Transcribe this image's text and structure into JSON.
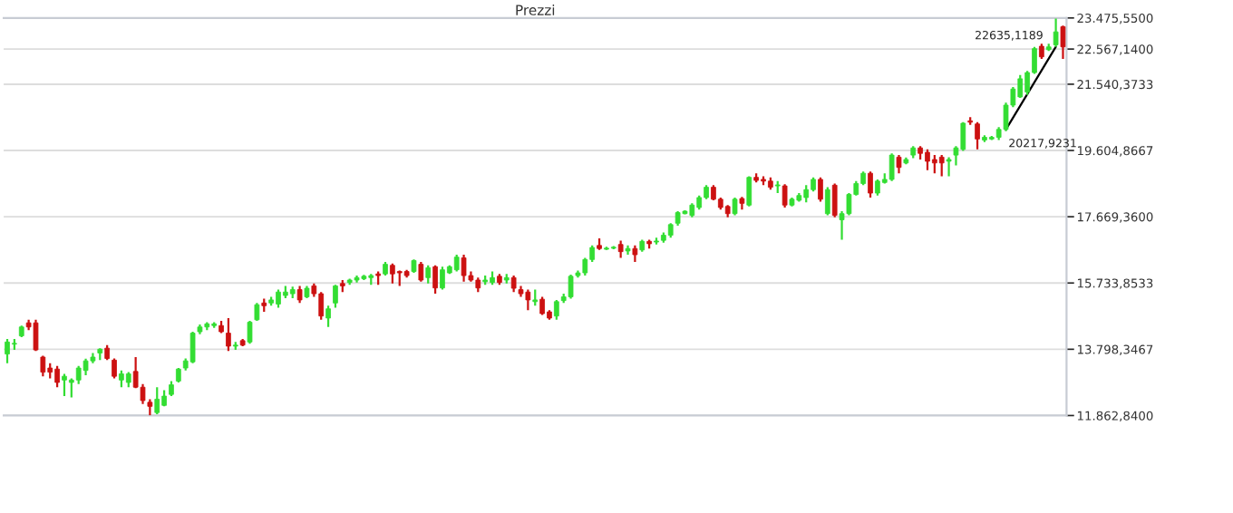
{
  "chart_data": {
    "type": "candlestick",
    "title": "Prezzi",
    "categories": [
      null,
      null,
      null,
      null,
      null,
      null,
      null,
      null,
      null,
      null,
      null,
      null,
      null,
      null,
      null,
      null,
      null,
      null,
      null,
      null,
      null,
      null,
      null,
      null,
      null,
      null,
      null,
      null,
      null,
      null,
      null,
      null,
      null,
      null,
      null,
      null,
      null,
      null,
      null,
      null,
      null,
      null,
      null,
      null,
      null,
      null,
      null,
      null,
      null,
      null,
      null,
      null,
      null,
      null,
      null,
      null,
      null,
      null,
      null,
      null,
      null,
      null,
      null,
      null,
      null,
      null,
      null,
      null,
      null,
      null,
      null,
      null,
      null,
      null,
      null,
      null,
      null,
      null,
      null,
      null,
      null,
      null,
      null,
      null,
      null,
      null,
      null,
      null,
      null,
      null,
      null,
      null,
      null,
      null,
      null,
      null,
      null,
      null,
      null,
      null,
      null,
      null,
      null,
      null,
      null,
      null,
      null,
      null,
      null,
      null,
      null,
      null,
      null,
      null,
      null,
      null,
      null,
      null,
      null,
      null,
      null,
      null,
      null,
      null,
      null,
      null,
      null,
      null,
      null,
      null,
      null,
      null,
      null,
      null,
      null,
      null,
      null,
      null,
      null,
      null,
      null,
      null,
      null,
      null,
      null,
      null,
      null,
      null,
      null
    ],
    "ohlc": [
      [
        13660,
        14100,
        13390,
        14010
      ],
      [
        13950,
        14100,
        13780,
        13970
      ],
      [
        14190,
        14490,
        14150,
        14450
      ],
      [
        14570,
        14660,
        14360,
        14450
      ],
      [
        14570,
        14660,
        13750,
        13780
      ],
      [
        13570,
        13610,
        13010,
        13130
      ],
      [
        13250,
        13390,
        12950,
        13130
      ],
      [
        13220,
        13310,
        12690,
        12830
      ],
      [
        12900,
        13080,
        12430,
        13010
      ],
      [
        12830,
        12950,
        12390,
        12900
      ],
      [
        12900,
        13310,
        12780,
        13250
      ],
      [
        13180,
        13520,
        13040,
        13460
      ],
      [
        13460,
        13690,
        13390,
        13570
      ],
      [
        13690,
        13830,
        13480,
        13800
      ],
      [
        13830,
        13920,
        13480,
        13530
      ],
      [
        13480,
        13530,
        12950,
        13010
      ],
      [
        12900,
        13180,
        12690,
        13080
      ],
      [
        12830,
        13130,
        12690,
        13080
      ],
      [
        13150,
        13570,
        12660,
        12690
      ],
      [
        12690,
        12780,
        12200,
        12300
      ],
      [
        12250,
        12340,
        11870,
        12130
      ],
      [
        11950,
        12690,
        11900,
        12340
      ],
      [
        12160,
        12600,
        12130,
        12430
      ],
      [
        12480,
        12870,
        12430,
        12760
      ],
      [
        12870,
        13250,
        12830,
        13220
      ],
      [
        13250,
        13530,
        13180,
        13460
      ],
      [
        13430,
        14310,
        13390,
        14270
      ],
      [
        14310,
        14520,
        14240,
        14450
      ],
      [
        14450,
        14590,
        14360,
        14540
      ],
      [
        14490,
        14590,
        14420,
        14540
      ],
      [
        14490,
        14630,
        14270,
        14310
      ],
      [
        14270,
        14710,
        13750,
        13890
      ],
      [
        13890,
        14010,
        13780,
        13920
      ],
      [
        14050,
        14100,
        13890,
        13920
      ],
      [
        14010,
        14630,
        13960,
        14590
      ],
      [
        14660,
        15150,
        14630,
        15100
      ],
      [
        15150,
        15280,
        14890,
        15070
      ],
      [
        15150,
        15330,
        15070,
        15240
      ],
      [
        15120,
        15540,
        15010,
        15470
      ],
      [
        15370,
        15650,
        15290,
        15470
      ],
      [
        15420,
        15630,
        15290,
        15540
      ],
      [
        15540,
        15650,
        15150,
        15240
      ],
      [
        15330,
        15650,
        15290,
        15580
      ],
      [
        15650,
        15720,
        15330,
        15420
      ],
      [
        15420,
        15470,
        14660,
        14770
      ],
      [
        14710,
        15070,
        14450,
        14980
      ],
      [
        15150,
        15680,
        15010,
        15650
      ],
      [
        15720,
        15820,
        15470,
        15650
      ],
      [
        15750,
        15860,
        15680,
        15820
      ],
      [
        15820,
        15950,
        15750,
        15890
      ],
      [
        15860,
        15970,
        15820,
        15930
      ],
      [
        15890,
        16000,
        15680,
        15950
      ],
      [
        16000,
        16070,
        15680,
        15950
      ],
      [
        16000,
        16350,
        15950,
        16280
      ],
      [
        16250,
        16300,
        15720,
        16000
      ],
      [
        16070,
        16100,
        15650,
        16030
      ],
      [
        16070,
        16120,
        15890,
        15950
      ],
      [
        16070,
        16420,
        16030,
        16390
      ],
      [
        16280,
        16350,
        15770,
        15820
      ],
      [
        15890,
        16250,
        15720,
        16180
      ],
      [
        16210,
        16250,
        15420,
        15590
      ],
      [
        15590,
        16210,
        15540,
        16120
      ],
      [
        16030,
        16250,
        16000,
        16210
      ],
      [
        16120,
        16560,
        16070,
        16490
      ],
      [
        16470,
        16560,
        15770,
        15950
      ],
      [
        15950,
        16070,
        15770,
        15820
      ],
      [
        15820,
        15890,
        15470,
        15590
      ],
      [
        15770,
        15950,
        15680,
        15820
      ],
      [
        15750,
        16070,
        15680,
        15890
      ],
      [
        15930,
        16000,
        15680,
        15750
      ],
      [
        15820,
        16000,
        15720,
        15890
      ],
      [
        15890,
        15950,
        15470,
        15580
      ],
      [
        15540,
        15650,
        15330,
        15420
      ],
      [
        15470,
        15540,
        14940,
        15240
      ],
      [
        15190,
        15540,
        15070,
        15240
      ],
      [
        15260,
        15330,
        14800,
        14840
      ],
      [
        14890,
        14940,
        14660,
        14710
      ],
      [
        14770,
        15240,
        14660,
        15190
      ],
      [
        15220,
        15420,
        15150,
        15330
      ],
      [
        15330,
        15980,
        15280,
        15930
      ],
      [
        15950,
        16100,
        15890,
        16030
      ],
      [
        16030,
        16470,
        15950,
        16420
      ],
      [
        16420,
        16830,
        16350,
        16770
      ],
      [
        16830,
        17040,
        16700,
        16740
      ],
      [
        16720,
        16790,
        16700,
        16750
      ],
      [
        16750,
        16810,
        16720,
        16780
      ],
      [
        16860,
        16970,
        16470,
        16650
      ],
      [
        16670,
        16830,
        16560,
        16740
      ],
      [
        16740,
        16830,
        16350,
        16560
      ],
      [
        16700,
        17000,
        16650,
        16950
      ],
      [
        16950,
        17000,
        16740,
        16880
      ],
      [
        16930,
        17060,
        16860,
        16960
      ],
      [
        16980,
        17210,
        16910,
        17130
      ],
      [
        17130,
        17480,
        17060,
        17440
      ],
      [
        17480,
        17830,
        17410,
        17790
      ],
      [
        17760,
        17860,
        17740,
        17830
      ],
      [
        17710,
        18060,
        17650,
        18010
      ],
      [
        17940,
        18290,
        17880,
        18230
      ],
      [
        18230,
        18590,
        18180,
        18530
      ],
      [
        18530,
        18590,
        18150,
        18180
      ],
      [
        18180,
        18230,
        17880,
        17940
      ],
      [
        17970,
        18010,
        17650,
        17760
      ],
      [
        17760,
        18230,
        17710,
        18180
      ],
      [
        18200,
        18250,
        17880,
        18060
      ],
      [
        18010,
        18850,
        17970,
        18820
      ],
      [
        18820,
        18940,
        18670,
        18730
      ],
      [
        18760,
        18850,
        18590,
        18710
      ],
      [
        18710,
        18820,
        18460,
        18530
      ],
      [
        18570,
        18710,
        18360,
        18600
      ],
      [
        18570,
        18620,
        17940,
        18010
      ],
      [
        18010,
        18230,
        17970,
        18180
      ],
      [
        18150,
        18360,
        18110,
        18290
      ],
      [
        18230,
        18590,
        18090,
        18460
      ],
      [
        18460,
        18820,
        18410,
        18760
      ],
      [
        18760,
        18820,
        18110,
        18180
      ],
      [
        17760,
        18530,
        17710,
        18460
      ],
      [
        18590,
        18640,
        17650,
        17710
      ],
      [
        17580,
        17830,
        17000,
        17760
      ],
      [
        17760,
        18360,
        17710,
        18320
      ],
      [
        18320,
        18710,
        18290,
        18640
      ],
      [
        18640,
        18990,
        18590,
        18940
      ],
      [
        18940,
        18990,
        18230,
        18360
      ],
      [
        18360,
        18760,
        18290,
        18710
      ],
      [
        18670,
        18940,
        18640,
        18760
      ],
      [
        18760,
        19520,
        18710,
        19470
      ],
      [
        19410,
        19470,
        18940,
        19110
      ],
      [
        19240,
        19400,
        19200,
        19340
      ],
      [
        19470,
        19730,
        19380,
        19680
      ],
      [
        19680,
        19730,
        19340,
        19520
      ],
      [
        19550,
        19640,
        19030,
        19290
      ],
      [
        19340,
        19470,
        18940,
        19240
      ],
      [
        19410,
        19470,
        18850,
        19240
      ],
      [
        19290,
        19410,
        18850,
        19340
      ],
      [
        19470,
        19730,
        19170,
        19680
      ],
      [
        19640,
        20430,
        19590,
        20400
      ],
      [
        20470,
        20580,
        20350,
        20430
      ],
      [
        20380,
        20430,
        19640,
        19940
      ],
      [
        19910,
        20050,
        19850,
        19990
      ],
      [
        19940,
        20030,
        19910,
        19990
      ],
      [
        19990,
        20290,
        19910,
        20220
      ],
      [
        20220,
        21000,
        20170,
        20930
      ],
      [
        20930,
        21460,
        20870,
        21400
      ],
      [
        21170,
        21810,
        21140,
        21700
      ],
      [
        21310,
        21930,
        21230,
        21880
      ],
      [
        21880,
        22630,
        21840,
        22580
      ],
      [
        22650,
        22720,
        22280,
        22340
      ],
      [
        22550,
        22720,
        22510,
        22630
      ],
      [
        22690,
        23460,
        22630,
        23070
      ],
      [
        23220,
        23250,
        22280,
        22630
      ]
    ],
    "colors": [
      "#33dd33",
      "#33dd33",
      "#33dd33",
      "#cc1111",
      "#cc1111",
      "#cc1111",
      "#cc1111",
      "#cc1111",
      "#33dd33",
      "#33dd33",
      "#33dd33",
      "#33dd33",
      "#33dd33",
      "#33dd33",
      "#cc1111",
      "#cc1111",
      "#33dd33",
      "#33dd33",
      "#cc1111",
      "#cc1111",
      "#cc1111",
      "#33dd33",
      "#33dd33",
      "#33dd33",
      "#33dd33",
      "#33dd33",
      "#33dd33",
      "#33dd33",
      "#33dd33",
      "#33dd33",
      "#cc1111",
      "#cc1111",
      "#33dd33",
      "#cc1111",
      "#33dd33",
      "#33dd33",
      "#cc1111",
      "#33dd33",
      "#33dd33",
      "#33dd33",
      "#33dd33",
      "#cc1111",
      "#33dd33",
      "#cc1111",
      "#cc1111",
      "#33dd33",
      "#33dd33",
      "#cc1111",
      "#33dd33",
      "#33dd33",
      "#33dd33",
      "#33dd33",
      "#cc1111",
      "#33dd33",
      "#cc1111",
      "#cc1111",
      "#cc1111",
      "#33dd33",
      "#cc1111",
      "#33dd33",
      "#cc1111",
      "#33dd33",
      "#33dd33",
      "#33dd33",
      "#cc1111",
      "#cc1111",
      "#cc1111",
      "#33dd33",
      "#33dd33",
      "#cc1111",
      "#33dd33",
      "#cc1111",
      "#cc1111",
      "#cc1111",
      "#33dd33",
      "#cc1111",
      "#cc1111",
      "#33dd33",
      "#33dd33",
      "#33dd33",
      "#33dd33",
      "#33dd33",
      "#33dd33",
      "#cc1111",
      "#33dd33",
      "#33dd33",
      "#cc1111",
      "#33dd33",
      "#cc1111",
      "#33dd33",
      "#cc1111",
      "#33dd33",
      "#33dd33",
      "#33dd33",
      "#33dd33",
      "#33dd33",
      "#33dd33",
      "#33dd33",
      "#33dd33",
      "#cc1111",
      "#cc1111",
      "#cc1111",
      "#33dd33",
      "#cc1111",
      "#33dd33",
      "#cc1111",
      "#cc1111",
      "#cc1111",
      "#33dd33",
      "#cc1111",
      "#33dd33",
      "#33dd33",
      "#33dd33",
      "#33dd33",
      "#cc1111",
      "#33dd33",
      "#cc1111",
      "#33dd33",
      "#33dd33",
      "#33dd33",
      "#33dd33",
      "#cc1111",
      "#33dd33",
      "#33dd33",
      "#33dd33",
      "#cc1111",
      "#33dd33",
      "#33dd33",
      "#cc1111",
      "#cc1111",
      "#cc1111",
      "#cc1111",
      "#33dd33",
      "#33dd33",
      "#33dd33",
      "#cc1111",
      "#cc1111",
      "#33dd33",
      "#33dd33",
      "#33dd33",
      "#33dd33",
      "#33dd33",
      "#33dd33",
      "#33dd33",
      "#33dd33",
      "#cc1111",
      "#33dd33",
      "#33dd33",
      "#cc1111"
    ],
    "series": [
      {
        "type": "line",
        "color": "#000000",
        "values": [
          null,
          null,
          null,
          null,
          null,
          null,
          null,
          null,
          null,
          null,
          null,
          null,
          null,
          null,
          null,
          null,
          null,
          null,
          null,
          null,
          null,
          null,
          null,
          null,
          null,
          null,
          null,
          null,
          null,
          null,
          null,
          null,
          null,
          null,
          null,
          null,
          null,
          null,
          null,
          null,
          null,
          null,
          null,
          null,
          null,
          null,
          null,
          null,
          null,
          null,
          null,
          null,
          null,
          null,
          null,
          null,
          null,
          null,
          null,
          null,
          null,
          null,
          null,
          null,
          null,
          null,
          null,
          null,
          null,
          null,
          null,
          null,
          null,
          null,
          null,
          null,
          null,
          null,
          null,
          null,
          null,
          null,
          null,
          null,
          null,
          null,
          null,
          null,
          null,
          null,
          null,
          null,
          null,
          null,
          null,
          null,
          null,
          null,
          null,
          null,
          null,
          null,
          null,
          null,
          null,
          null,
          null,
          null,
          null,
          null,
          null,
          null,
          null,
          null,
          null,
          null,
          null,
          null,
          null,
          null,
          null,
          null,
          null,
          null,
          null,
          null,
          null,
          null,
          null,
          null,
          null,
          null,
          null,
          null,
          null,
          null,
          null,
          null,
          null,
          null,
          20217.9231,
          null,
          null,
          null,
          null,
          null,
          null,
          22635.1189,
          null
        ],
        "value_labels": [
          null,
          null,
          null,
          null,
          null,
          null,
          null,
          null,
          null,
          null,
          null,
          null,
          null,
          null,
          null,
          null,
          null,
          null,
          null,
          null,
          null,
          null,
          null,
          null,
          null,
          null,
          null,
          null,
          null,
          null,
          null,
          null,
          null,
          null,
          null,
          null,
          null,
          null,
          null,
          null,
          null,
          null,
          null,
          null,
          null,
          null,
          null,
          null,
          null,
          null,
          null,
          null,
          null,
          null,
          null,
          null,
          null,
          null,
          null,
          null,
          null,
          null,
          null,
          null,
          null,
          null,
          null,
          null,
          null,
          null,
          null,
          null,
          null,
          null,
          null,
          null,
          null,
          null,
          null,
          null,
          null,
          null,
          null,
          null,
          null,
          null,
          null,
          null,
          null,
          null,
          null,
          null,
          null,
          null,
          null,
          null,
          null,
          null,
          null,
          null,
          null,
          null,
          null,
          null,
          null,
          null,
          null,
          null,
          null,
          null,
          null,
          null,
          null,
          null,
          null,
          null,
          null,
          null,
          null,
          null,
          null,
          null,
          null,
          null,
          null,
          null,
          null,
          null,
          null,
          null,
          null,
          null,
          null,
          null,
          null,
          null,
          null,
          null,
          null,
          null,
          "20217,9231",
          null,
          null,
          null,
          null,
          null,
          null,
          "22635,1189",
          null
        ]
      }
    ],
    "ylim": [
      11862.84,
      23475.55
    ],
    "yticks": [
      {
        "value": 11862.84,
        "label": "11.862,8400"
      },
      {
        "value": 13798.3467,
        "label": "13.798,3467"
      },
      {
        "value": 15733.8533,
        "label": "15.733,8533"
      },
      {
        "value": 17669.36,
        "label": "17.669,3600"
      },
      {
        "value": 19604.8667,
        "label": "19.604,8667"
      },
      {
        "value": 21540.3733,
        "label": "21.540,3733"
      },
      {
        "value": 22567.14,
        "label": "22.567,1400"
      },
      {
        "value": 23475.55,
        "label": "23.475,5500"
      }
    ],
    "tick_labels": "y",
    "grid": "y"
  }
}
